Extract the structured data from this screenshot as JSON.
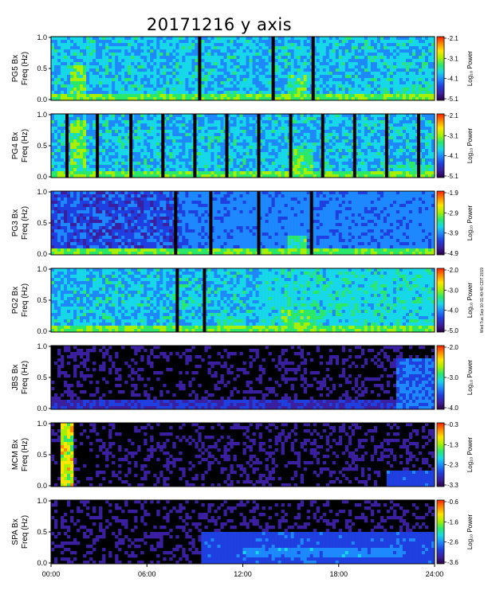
{
  "title": "20171216 y axis",
  "stamp": "Wed Tue Sep 10 01:40:40 CDT 2019",
  "time_ticks": [
    "00:00",
    "06:00",
    "12:00",
    "18:00",
    "24:00"
  ],
  "freq_ticks": [
    "1.0",
    "0.5",
    "0.0"
  ],
  "freq_label": "Freq (Hz)",
  "colorbar_label": "Log₁₀ Power",
  "palette": [
    "#2a0040",
    "#3a1fa0",
    "#1f3fe0",
    "#1e88ff",
    "#17d8e8",
    "#2be86a",
    "#a8f000",
    "#ffe600",
    "#ff8a00",
    "#ff1e00"
  ],
  "panels": [
    {
      "station": "PG5 Bx",
      "background": "dense",
      "cbar_ticks": [
        "-2.1",
        "-3.1",
        "-4.1",
        "-5.1"
      ],
      "gaps": [
        9.3,
        13.9,
        16.4
      ],
      "features": [
        {
          "t0": 1.2,
          "t1": 2.2,
          "f0": 0.0,
          "f1": 0.55,
          "level": 0.62
        },
        {
          "t0": 14.8,
          "t1": 16.0,
          "f0": 0.05,
          "f1": 0.4,
          "level": 0.58
        },
        {
          "t0": 21.5,
          "t1": 24.0,
          "f0": 0.0,
          "f1": 0.25,
          "level": 0.5
        },
        {
          "t0": 6.5,
          "t1": 8.5,
          "f0": 0.0,
          "f1": 0.12,
          "level": 0.55
        }
      ]
    },
    {
      "station": "PG4 Bx",
      "background": "dense",
      "cbar_ticks": [
        "-2.1",
        "-3.1",
        "-4.1",
        "-5.1"
      ],
      "gaps": [
        1.0,
        2.9,
        5.0,
        7.0,
        9.0,
        11.0,
        13.0,
        15.0,
        17.0,
        19.0,
        21.0,
        23.0
      ],
      "features": [
        {
          "t0": 1.3,
          "t1": 2.2,
          "f0": 0.0,
          "f1": 0.9,
          "level": 0.62
        },
        {
          "t0": 15.0,
          "t1": 16.3,
          "f0": 0.05,
          "f1": 0.45,
          "level": 0.6
        },
        {
          "t0": 21.5,
          "t1": 24.0,
          "f0": 0.0,
          "f1": 0.2,
          "level": 0.5
        }
      ]
    },
    {
      "station": "PG3 Bx",
      "background": "dark",
      "cbar_ticks": [
        "-1.9",
        "-2.9",
        "-3.9",
        "-4.9"
      ],
      "gaps": [
        7.8,
        10.0,
        13.0,
        16.3
      ],
      "features": [
        {
          "t0": 8.0,
          "t1": 24.0,
          "f0": 0.0,
          "f1": 1.0,
          "level": 0.32
        },
        {
          "t0": 14.8,
          "t1": 16.0,
          "f0": 0.05,
          "f1": 0.3,
          "level": 0.55
        }
      ]
    },
    {
      "station": "PG2 Bx",
      "background": "dense",
      "cbar_ticks": [
        "-2.0",
        "-3.0",
        "-4.0",
        "-5.0"
      ],
      "gaps": [
        7.9,
        9.6
      ],
      "features": [
        {
          "t0": 13.0,
          "t1": 24.0,
          "f0": 0.0,
          "f1": 1.0,
          "level": 0.45
        },
        {
          "t0": 14.5,
          "t1": 16.5,
          "f0": 0.0,
          "f1": 0.35,
          "level": 0.58
        },
        {
          "t0": 10.5,
          "t1": 12.0,
          "f0": 0.05,
          "f1": 0.25,
          "level": 0.55
        }
      ]
    },
    {
      "station": "JBS Bx",
      "background": "black",
      "cbar_ticks": [
        "-2.0",
        "-3.0",
        "-4.0"
      ],
      "gaps": [],
      "features": [
        {
          "t0": 21.7,
          "t1": 24.0,
          "f0": 0.0,
          "f1": 0.8,
          "level": 0.3
        },
        {
          "t0": 0.0,
          "t1": 24.0,
          "f0": 0.0,
          "f1": 0.15,
          "level": 0.18
        }
      ]
    },
    {
      "station": "MCM Bx",
      "background": "black",
      "cbar_ticks": [
        "-0.3",
        "-1.3",
        "-2.3",
        "-3.3"
      ],
      "gaps": [],
      "features": [
        {
          "t0": 0.6,
          "t1": 1.3,
          "f0": 0.0,
          "f1": 1.0,
          "level": 0.75
        },
        {
          "t0": 21.0,
          "t1": 24.0,
          "f0": 0.0,
          "f1": 0.25,
          "level": 0.25
        }
      ]
    },
    {
      "station": "SPA Bx",
      "background": "black",
      "cbar_ticks": [
        "-0.6",
        "-1.6",
        "-2.6",
        "-3.6"
      ],
      "gaps": [],
      "features": [
        {
          "t0": 9.5,
          "t1": 24.0,
          "f0": 0.0,
          "f1": 0.5,
          "level": 0.25
        },
        {
          "t0": 12.0,
          "t1": 22.0,
          "f0": 0.1,
          "f1": 0.25,
          "level": 0.35
        }
      ]
    }
  ]
}
